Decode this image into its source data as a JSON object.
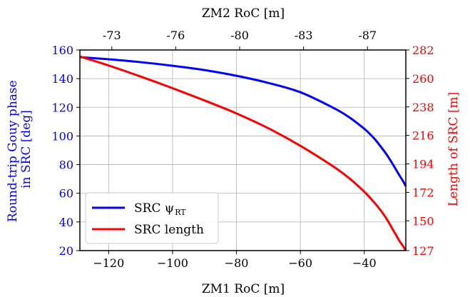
{
  "chart_data": {
    "type": "line",
    "xlabel_bottom": "ZM1 RoC [m]",
    "xlabel_top": "ZM2 RoC [m]",
    "ylabel_left_lines": [
      "Round-trip Gouy phase",
      "in SRC [deg]"
    ],
    "ylabel_right": "Length of SRC [m]",
    "xlim": [
      -129,
      -27
    ],
    "ylim_left": [
      20,
      160
    ],
    "ylim_right": [
      127,
      282
    ],
    "x_ticks": [
      -120,
      -100,
      -80,
      -60,
      -40
    ],
    "x_tick_labels": [
      "−120",
      "−100",
      "−80",
      "−60",
      "−40"
    ],
    "y_left_ticks": [
      20,
      40,
      60,
      80,
      100,
      120,
      140,
      160
    ],
    "y_right_ticks": [
      127,
      150,
      172,
      194,
      216,
      238,
      260,
      282
    ],
    "top_ticks": [
      {
        "x": -119,
        "label": "-73"
      },
      {
        "x": -99,
        "label": "-76"
      },
      {
        "x": -79,
        "label": "-80"
      },
      {
        "x": -59,
        "label": "-83"
      },
      {
        "x": -39,
        "label": "-87"
      }
    ],
    "grid": true,
    "legend_position": "bottom-left",
    "colors": {
      "left_axis": "#0000ff",
      "right_axis": "#ff0000",
      "gouy": "#0000ff",
      "length": "#ff0000"
    },
    "series": [
      {
        "name": "SRC ψ",
        "name_subscript": "RT",
        "axis": "left",
        "color": "#0000ff",
        "x": [
          -129,
          -120,
          -110,
          -100,
          -90,
          -80,
          -70,
          -60,
          -50,
          -45,
          -40,
          -37,
          -35,
          -33,
          -31,
          -29,
          -28,
          -27
        ],
        "y": [
          155,
          153.5,
          151.5,
          149,
          146,
          142,
          137,
          130.5,
          120,
          113.5,
          105,
          98.5,
          93,
          87,
          80,
          72.5,
          69,
          65
        ]
      },
      {
        "name": "SRC length",
        "axis": "right",
        "color": "#ff0000",
        "x": [
          -129,
          -120,
          -110,
          -100,
          -90,
          -80,
          -70,
          -60,
          -50,
          -45,
          -40,
          -37,
          -35,
          -33,
          -31,
          -29,
          -28,
          -27
        ],
        "y": [
          277,
          270,
          261.5,
          252.5,
          243,
          233,
          221.5,
          208,
          192.5,
          183.5,
          172.5,
          164.5,
          158.5,
          151.5,
          143,
          134.5,
          131,
          127
        ]
      }
    ]
  }
}
